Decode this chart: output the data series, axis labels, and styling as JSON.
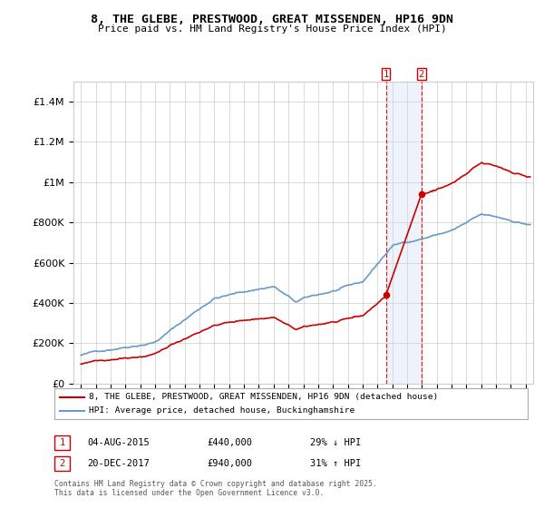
{
  "title": "8, THE GLEBE, PRESTWOOD, GREAT MISSENDEN, HP16 9DN",
  "subtitle": "Price paid vs. HM Land Registry's House Price Index (HPI)",
  "legend_line1": "8, THE GLEBE, PRESTWOOD, GREAT MISSENDEN, HP16 9DN (detached house)",
  "legend_line2": "HPI: Average price, detached house, Buckinghamshire",
  "footnote": "Contains HM Land Registry data © Crown copyright and database right 2025.\nThis data is licensed under the Open Government Licence v3.0.",
  "sale1_date": "04-AUG-2015",
  "sale1_price": "£440,000",
  "sale1_hpi": "29% ↓ HPI",
  "sale2_date": "20-DEC-2017",
  "sale2_price": "£940,000",
  "sale2_hpi": "31% ↑ HPI",
  "sale1_x": 2015.58,
  "sale1_y": 440000,
  "sale2_x": 2017.97,
  "sale2_y": 940000,
  "ylim": [
    0,
    1500000
  ],
  "xlim": [
    1994.5,
    2025.5
  ],
  "red_color": "#cc0000",
  "blue_color": "#6699cc",
  "shade_color": "#ccdded",
  "background_color": "#ffffff",
  "grid_color": "#cccccc"
}
